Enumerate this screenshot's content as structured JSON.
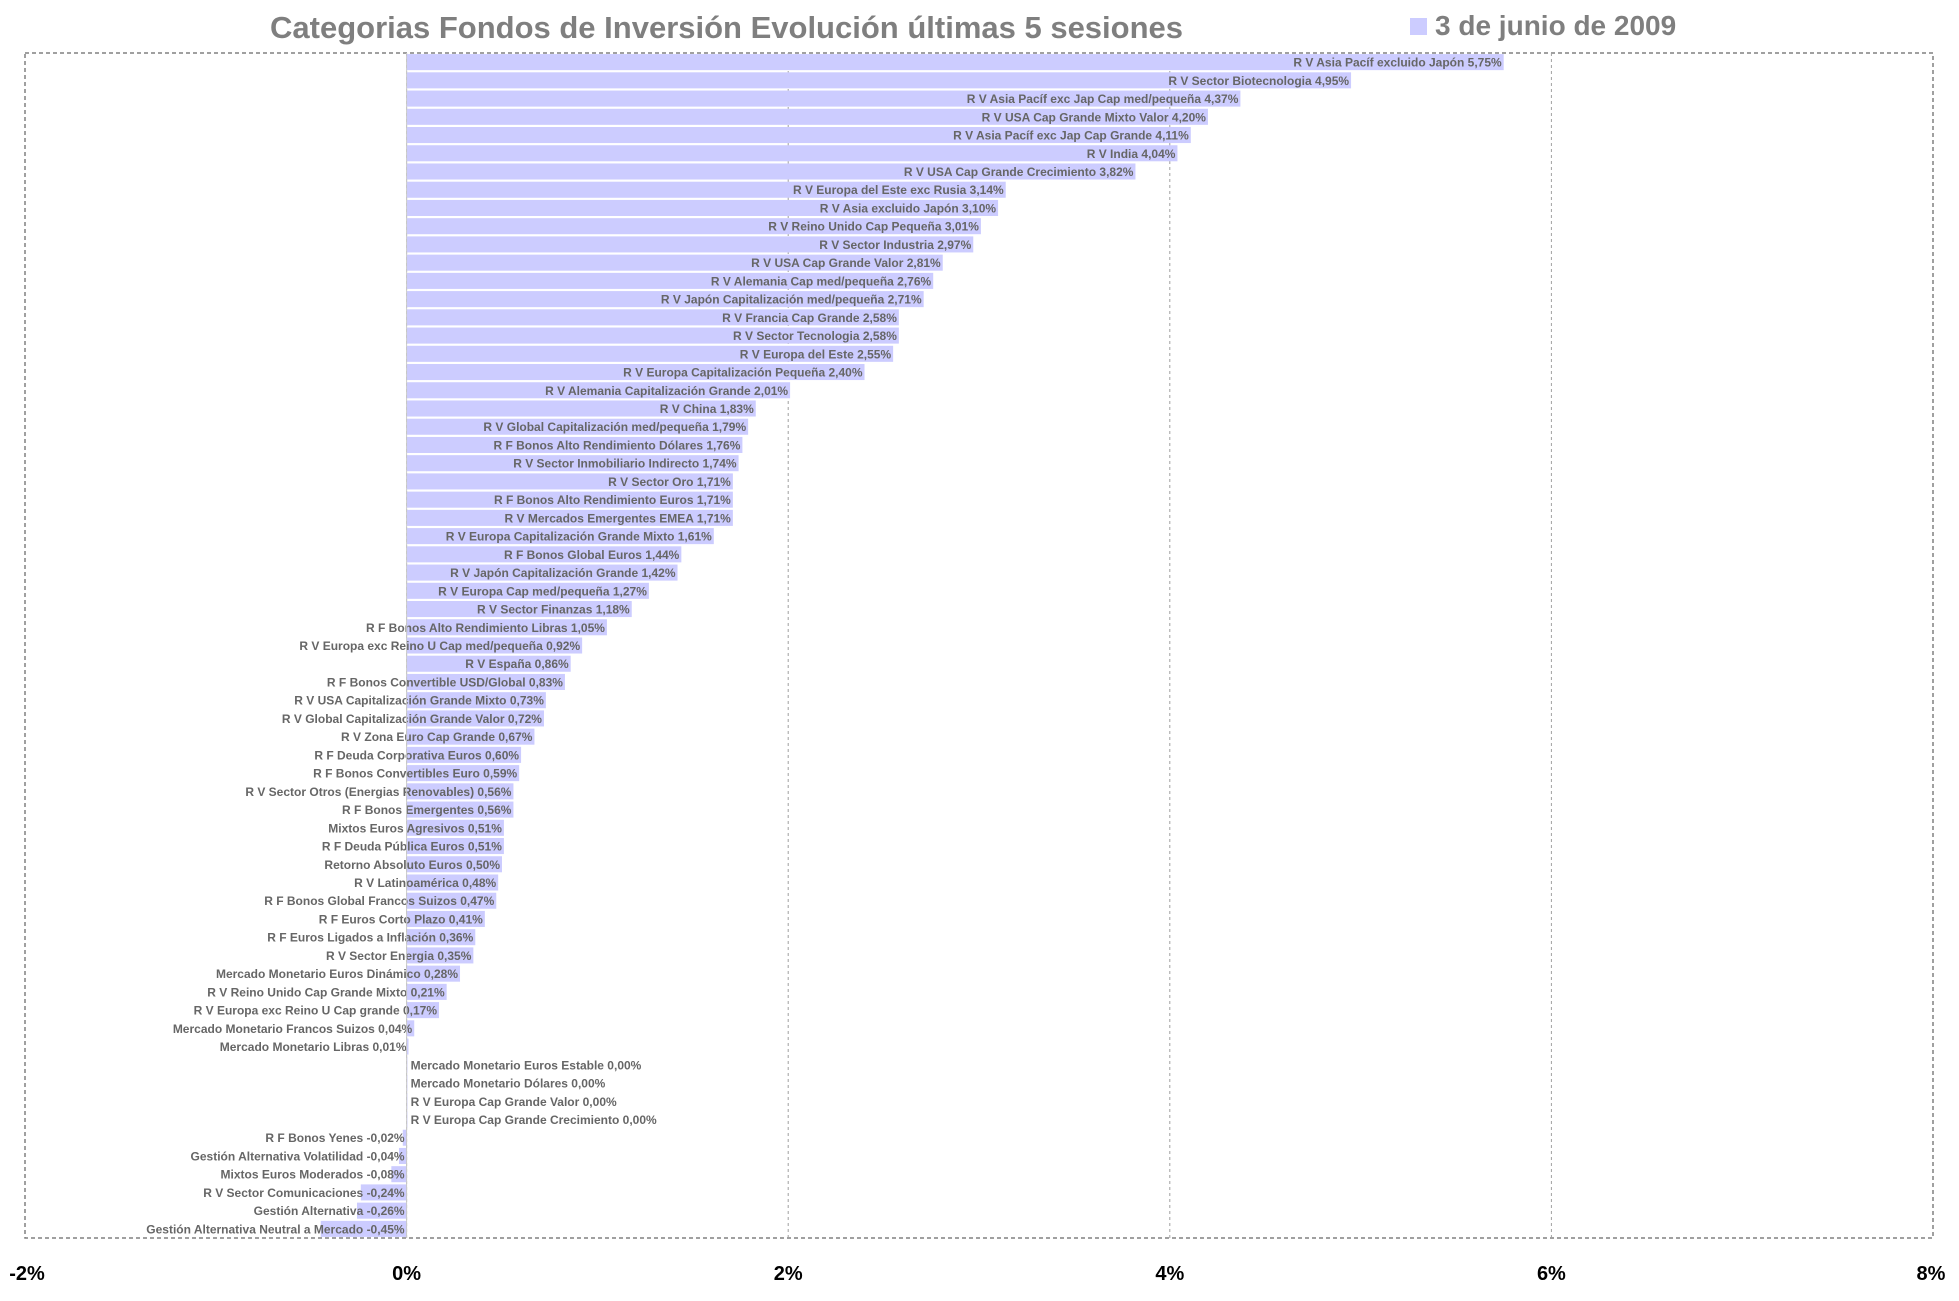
{
  "chart_data": {
    "type": "bar",
    "orientation": "horizontal",
    "title": "Categorias Fondos de Inversión Evolución últimas 5 sesiones",
    "legend": {
      "position": "top-right",
      "entries": [
        {
          "name": "3 de junio de 2009",
          "color": "#ccccff"
        }
      ]
    },
    "xlim": [
      -2,
      8
    ],
    "xticks": [
      -2,
      0,
      2,
      4,
      6,
      8
    ],
    "xtick_labels": [
      "-2%",
      "0%",
      "2%",
      "4%",
      "6%",
      "8%"
    ],
    "grid": "vertical dashed",
    "bar_color": "#ccccff",
    "series": [
      {
        "name": "3 de junio de 2009",
        "items": [
          {
            "label": "R V Asia Pacíf excluido Japón 5,75%",
            "value": 5.75
          },
          {
            "label": "R V Sector Biotecnologia 4,95%",
            "value": 4.95
          },
          {
            "label": "R V Asia Pacíf exc Jap Cap med/pequeña 4,37%",
            "value": 4.37
          },
          {
            "label": "R V USA Cap Grande Mixto Valor 4,20%",
            "value": 4.2
          },
          {
            "label": "R V Asia Pacíf exc Jap Cap Grande 4,11%",
            "value": 4.11
          },
          {
            "label": "R V India 4,04%",
            "value": 4.04
          },
          {
            "label": "R V USA Cap Grande Crecimiento 3,82%",
            "value": 3.82
          },
          {
            "label": "R V Europa del Este exc Rusia 3,14%",
            "value": 3.14
          },
          {
            "label": "R V Asia excluido Japón 3,10%",
            "value": 3.1
          },
          {
            "label": "R V Reino Unido Cap Pequeña 3,01%",
            "value": 3.01
          },
          {
            "label": "R V Sector Industria 2,97%",
            "value": 2.97
          },
          {
            "label": "R V USA Cap Grande Valor 2,81%",
            "value": 2.81
          },
          {
            "label": "R V Alemania Cap med/pequeña 2,76%",
            "value": 2.76
          },
          {
            "label": "R V Japón Capitalización med/pequeña 2,71%",
            "value": 2.71
          },
          {
            "label": "R V Francia Cap Grande 2,58%",
            "value": 2.58
          },
          {
            "label": "R V Sector Tecnologia 2,58%",
            "value": 2.58
          },
          {
            "label": "R V Europa del Este 2,55%",
            "value": 2.55
          },
          {
            "label": "R V Europa Capitalización Pequeña 2,40%",
            "value": 2.4
          },
          {
            "label": "R V Alemania Capitalización Grande 2,01%",
            "value": 2.01
          },
          {
            "label": "R V China 1,83%",
            "value": 1.83
          },
          {
            "label": "R V Global Capitalización med/pequeña 1,79%",
            "value": 1.79
          },
          {
            "label": "R F Bonos Alto Rendimiento Dólares 1,76%",
            "value": 1.76
          },
          {
            "label": "R V Sector Inmobiliario Indirecto 1,74%",
            "value": 1.74
          },
          {
            "label": "R V Sector Oro 1,71%",
            "value": 1.71
          },
          {
            "label": "R F Bonos Alto Rendimiento Euros 1,71%",
            "value": 1.71
          },
          {
            "label": "R V Mercados Emergentes EMEA 1,71%",
            "value": 1.71
          },
          {
            "label": "R V Europa Capitalización Grande Mixto 1,61%",
            "value": 1.61
          },
          {
            "label": "R F Bonos Global Euros 1,44%",
            "value": 1.44
          },
          {
            "label": "R V Japón Capitalización Grande 1,42%",
            "value": 1.42
          },
          {
            "label": "R V Europa Cap med/pequeña 1,27%",
            "value": 1.27
          },
          {
            "label": "R V Sector Finanzas 1,18%",
            "value": 1.18
          },
          {
            "label": "R F Bonos Alto Rendimiento Libras 1,05%",
            "value": 1.05
          },
          {
            "label": "R V Europa exc Reino U Cap med/pequeña 0,92%",
            "value": 0.92
          },
          {
            "label": "R V España 0,86%",
            "value": 0.86
          },
          {
            "label": "R F Bonos Convertible USD/Global 0,83%",
            "value": 0.83
          },
          {
            "label": "R V USA Capitalización Grande Mixto 0,73%",
            "value": 0.73
          },
          {
            "label": "R V Global Capitalización Grande Valor 0,72%",
            "value": 0.72
          },
          {
            "label": "R V Zona Euro Cap Grande 0,67%",
            "value": 0.67
          },
          {
            "label": "R F Deuda Corporativa Euros 0,60%",
            "value": 0.6
          },
          {
            "label": "R F Bonos Convertibles Euro 0,59%",
            "value": 0.59
          },
          {
            "label": "R V Sector Otros (Energias Renovables) 0,56%",
            "value": 0.56
          },
          {
            "label": "R F Bonos Emergentes 0,56%",
            "value": 0.56
          },
          {
            "label": "Mixtos Euros Agresivos 0,51%",
            "value": 0.51
          },
          {
            "label": "R F Deuda Pública Euros 0,51%",
            "value": 0.51
          },
          {
            "label": "Retorno Absoluto Euros 0,50%",
            "value": 0.5
          },
          {
            "label": "R V Latinoamérica 0,48%",
            "value": 0.48
          },
          {
            "label": "R F Bonos Global Francos Suizos 0,47%",
            "value": 0.47
          },
          {
            "label": "R F Euros Corto Plazo 0,41%",
            "value": 0.41
          },
          {
            "label": "R F Euros Ligados a Inflación 0,36%",
            "value": 0.36
          },
          {
            "label": "R V Sector Energia 0,35%",
            "value": 0.35
          },
          {
            "label": "Mercado Monetario Euros Dinámico 0,28%",
            "value": 0.28
          },
          {
            "label": "R V Reino Unido Cap Grande Mixto 0,21%",
            "value": 0.21
          },
          {
            "label": "R V Europa exc Reino U Cap grande 0,17%",
            "value": 0.17
          },
          {
            "label": "Mercado Monetario Francos Suizos 0,04%",
            "value": 0.04
          },
          {
            "label": "Mercado Monetario Libras 0,01%",
            "value": 0.01
          },
          {
            "label": "Mercado Monetario Euros Estable 0,00%",
            "value": 0.0
          },
          {
            "label": "Mercado Monetario Dólares 0,00%",
            "value": 0.0
          },
          {
            "label": "R V Europa Cap Grande Valor 0,00%",
            "value": 0.0
          },
          {
            "label": "R V Europa Cap Grande Crecimiento 0,00%",
            "value": 0.0
          },
          {
            "label": "R F Bonos Yenes -0,02%",
            "value": -0.02
          },
          {
            "label": "Gestión Alternativa Volatilidad -0,04%",
            "value": -0.04
          },
          {
            "label": "Mixtos Euros Moderados -0,08%",
            "value": -0.08
          },
          {
            "label": "R V Sector Comunicaciones -0,24%",
            "value": -0.24
          },
          {
            "label": "Gestión Alternativa -0,26%",
            "value": -0.26
          },
          {
            "label": "Gestión Alternativa Neutral a Mercado -0,45%",
            "value": -0.45
          }
        ]
      }
    ]
  }
}
